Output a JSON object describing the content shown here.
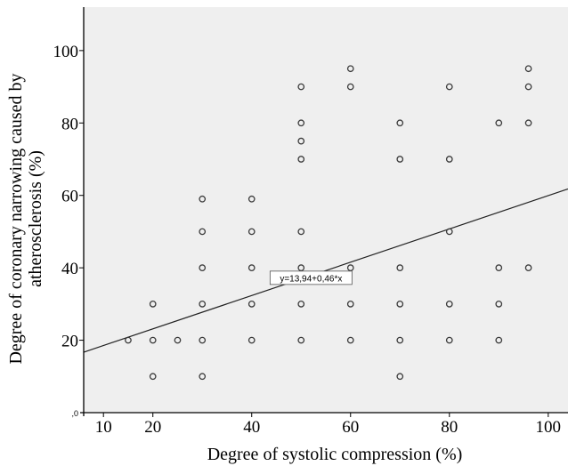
{
  "chart_data": {
    "type": "scatter",
    "title": "",
    "xlabel": "Degree of systolic compression (%)",
    "ylabel_lines": [
      "Degree of coronary narrowing caused by",
      "atherosclerosis (%)"
    ],
    "xlim": [
      6,
      104
    ],
    "ylim": [
      0,
      112
    ],
    "x_ticks": [
      "10",
      "20",
      "40",
      "60",
      "80",
      "100"
    ],
    "x_tick_values": [
      10,
      20,
      40,
      60,
      80,
      100
    ],
    "y_ticks": [
      "20",
      "40",
      "60",
      "80",
      "100"
    ],
    "y_tick_values": [
      20,
      40,
      60,
      80,
      100
    ],
    "y_origin_label": ",0",
    "grid": false,
    "background_color": "#efefef",
    "point_color": "#3a3a3a",
    "line_color": "#222222",
    "points": [
      [
        15,
        20
      ],
      [
        20,
        30
      ],
      [
        20,
        20
      ],
      [
        20,
        10
      ],
      [
        25,
        20
      ],
      [
        30,
        59
      ],
      [
        30,
        50
      ],
      [
        30,
        40
      ],
      [
        30,
        30
      ],
      [
        30,
        20
      ],
      [
        30,
        10
      ],
      [
        40,
        59
      ],
      [
        40,
        50
      ],
      [
        40,
        40
      ],
      [
        40,
        30
      ],
      [
        40,
        20
      ],
      [
        50,
        90
      ],
      [
        50,
        80
      ],
      [
        50,
        75
      ],
      [
        50,
        70
      ],
      [
        50,
        50
      ],
      [
        50,
        40
      ],
      [
        50,
        30
      ],
      [
        50,
        20
      ],
      [
        60,
        95
      ],
      [
        60,
        90
      ],
      [
        60,
        40
      ],
      [
        60,
        30
      ],
      [
        60,
        20
      ],
      [
        70,
        80
      ],
      [
        70,
        70
      ],
      [
        70,
        40
      ],
      [
        70,
        30
      ],
      [
        70,
        20
      ],
      [
        70,
        10
      ],
      [
        80,
        90
      ],
      [
        80,
        70
      ],
      [
        80,
        50
      ],
      [
        80,
        30
      ],
      [
        80,
        20
      ],
      [
        90,
        80
      ],
      [
        90,
        40
      ],
      [
        90,
        30
      ],
      [
        90,
        20
      ],
      [
        96,
        95
      ],
      [
        96,
        90
      ],
      [
        96,
        80
      ],
      [
        96,
        40
      ]
    ],
    "fit_line": {
      "equation": "y=13,94+0,46*x",
      "intercept": 13.94,
      "slope": 0.46,
      "label_position": [
        52,
        37
      ]
    }
  }
}
